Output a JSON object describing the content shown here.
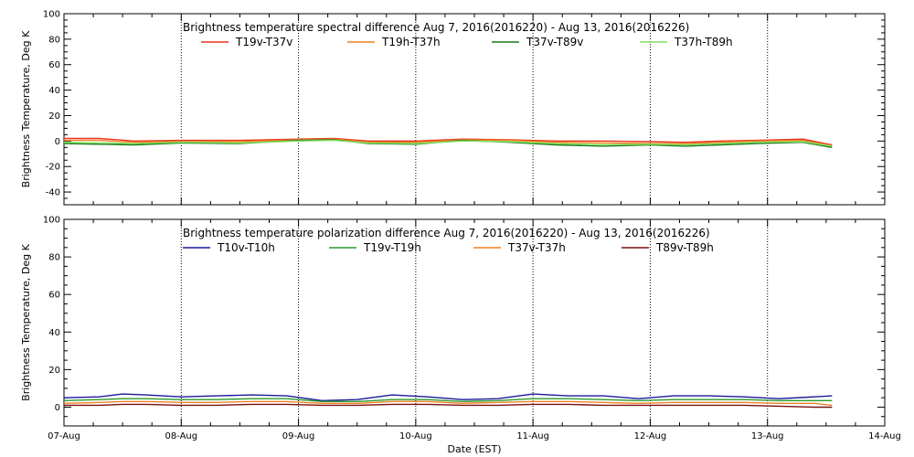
{
  "chart_data": [
    {
      "type": "line",
      "title": "Brightness temperature spectral difference     Aug  7, 2016(2016220) - Aug 13, 2016(2016226)",
      "ylabel": "Brightness Temperature, Deg K",
      "xlabel": "",
      "ylim": [
        -50,
        100
      ],
      "yticks": [
        -40,
        -20,
        0,
        20,
        40,
        60,
        80,
        100
      ],
      "xlim": [
        0,
        7
      ],
      "grid": "vertical dotted at each day",
      "series": [
        {
          "name": "T19v-T37v",
          "color": "#e8341c",
          "x": [
            0,
            0.3,
            0.6,
            1.0,
            1.5,
            2.0,
            2.3,
            2.6,
            3.0,
            3.4,
            3.8,
            4.2,
            4.6,
            5.0,
            5.3,
            5.6,
            5.9,
            6.3,
            6.55
          ],
          "y": [
            2,
            2,
            0,
            0.5,
            0.5,
            1.5,
            2,
            0,
            0,
            1.5,
            1,
            0,
            0,
            -0.5,
            -1,
            0,
            0.5,
            1.5,
            -3
          ]
        },
        {
          "name": "T19h-T37h",
          "color": "#f08020",
          "x": [
            0,
            0.3,
            0.6,
            1.0,
            1.5,
            2.0,
            2.3,
            2.6,
            3.0,
            3.4,
            3.8,
            4.2,
            4.6,
            5.0,
            5.3,
            5.6,
            5.9,
            6.3,
            6.55
          ],
          "y": [
            0.5,
            0.5,
            -1,
            -0.5,
            -0.5,
            1,
            1.5,
            -1,
            -1,
            1,
            0.5,
            -1,
            -1.5,
            -2,
            -2,
            -1,
            0,
            0.5,
            -4
          ]
        },
        {
          "name": "T37v-T89v",
          "color": "#1a7a1a",
          "x": [
            0,
            0.3,
            0.6,
            1.0,
            1.5,
            2.0,
            2.3,
            2.6,
            3.0,
            3.4,
            3.8,
            4.2,
            4.6,
            5.0,
            5.3,
            5.6,
            5.9,
            6.3,
            6.55
          ],
          "y": [
            -2,
            -2.5,
            -3,
            -1.5,
            -2,
            0.5,
            1,
            -2,
            -2.5,
            0.5,
            -1,
            -3,
            -4,
            -3,
            -4,
            -3,
            -2,
            -1,
            -5
          ]
        },
        {
          "name": "T37h-T89h",
          "color": "#80e060",
          "x": [
            0,
            0.3,
            0.6,
            1.0,
            1.5,
            2.0,
            2.3,
            2.6,
            3.0,
            3.4,
            3.8,
            4.2,
            4.6,
            5.0,
            5.3,
            5.6,
            5.9,
            6.3,
            6.55
          ],
          "y": [
            -1,
            -1.5,
            -2,
            -1,
            -1.5,
            0,
            0.5,
            -1.5,
            -2,
            0,
            -0.5,
            -2,
            -3,
            -2.5,
            -3,
            -2,
            -1,
            -0.5,
            -4
          ]
        }
      ],
      "legend_placement": "top, below title"
    },
    {
      "type": "line",
      "title": "Brightness temperature polarization difference     Aug  7, 2016(2016220) - Aug 13, 2016(2016226)",
      "ylabel": "Brightness Temperature, Deg K",
      "xlabel": "Date (EST)",
      "ylim": [
        -10,
        100
      ],
      "yticks": [
        0,
        20,
        40,
        60,
        80,
        100
      ],
      "xlim": [
        0,
        7
      ],
      "xtick_labels": [
        "07-Aug",
        "08-Aug",
        "09-Aug",
        "10-Aug",
        "11-Aug",
        "12-Aug",
        "13-Aug",
        "14-Aug"
      ],
      "grid": "vertical dotted at each day",
      "series": [
        {
          "name": "T10v-T10h",
          "color": "#1a1a9a",
          "x": [
            0,
            0.3,
            0.5,
            0.7,
            1.0,
            1.3,
            1.6,
            1.9,
            2.2,
            2.5,
            2.8,
            3.1,
            3.4,
            3.7,
            4.0,
            4.3,
            4.6,
            4.9,
            5.2,
            5.5,
            5.8,
            6.1,
            6.4,
            6.55
          ],
          "y": [
            5,
            5.5,
            7,
            6.5,
            5.5,
            6,
            6.5,
            6,
            3.5,
            4,
            6.5,
            5.5,
            4,
            4.5,
            7,
            6,
            6,
            4.5,
            6,
            6,
            5.5,
            4.5,
            5.5,
            6
          ]
        },
        {
          "name": "T19v-T19h",
          "color": "#2a9a2a",
          "x": [
            0,
            0.3,
            0.5,
            0.7,
            1.0,
            1.3,
            1.6,
            1.9,
            2.2,
            2.5,
            2.8,
            3.1,
            3.4,
            3.7,
            4.0,
            4.3,
            4.6,
            4.9,
            5.2,
            5.5,
            5.8,
            6.1,
            6.4,
            6.55
          ],
          "y": [
            3.5,
            4,
            4.5,
            4.5,
            4,
            4,
            4.5,
            4.5,
            3,
            3,
            4,
            4,
            3,
            3.5,
            4.5,
            4.5,
            4,
            3.5,
            4,
            4,
            4,
            3.5,
            3.5,
            3.5
          ]
        },
        {
          "name": "T37v-T37h",
          "color": "#f08020",
          "x": [
            0,
            0.3,
            0.5,
            0.7,
            1.0,
            1.3,
            1.6,
            1.9,
            2.2,
            2.5,
            2.8,
            3.1,
            3.4,
            3.7,
            4.0,
            4.3,
            4.6,
            4.9,
            5.2,
            5.5,
            5.8,
            6.1,
            6.4,
            6.55
          ],
          "y": [
            2,
            2.5,
            3,
            3,
            2.5,
            2.5,
            3,
            3,
            2,
            2,
            3,
            3,
            2,
            2.5,
            3,
            3,
            2.5,
            2,
            2.5,
            2.5,
            2.5,
            2,
            2,
            1
          ]
        },
        {
          "name": "T89v-T89h",
          "color": "#7a1010",
          "x": [
            0,
            0.3,
            0.5,
            0.7,
            1.0,
            1.3,
            1.6,
            1.9,
            2.2,
            2.5,
            2.8,
            3.1,
            3.4,
            3.7,
            4.0,
            4.3,
            4.6,
            4.9,
            5.2,
            5.5,
            5.8,
            6.1,
            6.4,
            6.55
          ],
          "y": [
            1,
            1,
            1.5,
            1.5,
            1,
            1,
            1.5,
            1.5,
            1,
            1,
            1.5,
            1.5,
            1,
            1,
            1.5,
            1.5,
            1,
            1,
            1,
            1,
            1,
            0.5,
            0,
            0
          ]
        }
      ],
      "legend_placement": "top, below title"
    }
  ]
}
